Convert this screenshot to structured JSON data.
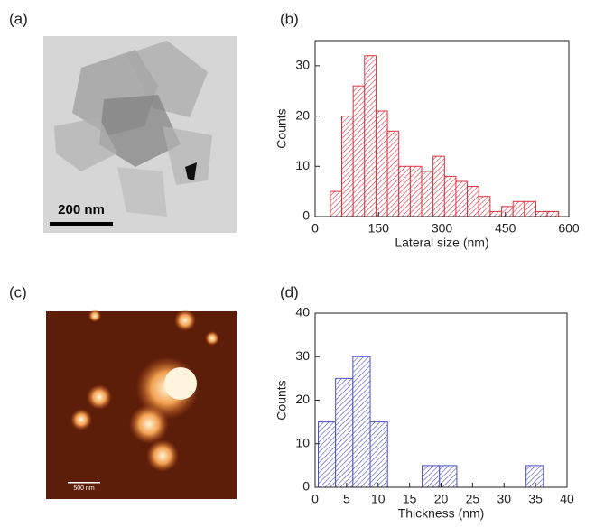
{
  "panels": {
    "a": "(a)",
    "b": "(b)",
    "c": "(c)",
    "d": "(d)"
  },
  "images": {
    "tem_scale_bar": "200 nm",
    "afm_scale_bar": "500 nm"
  },
  "chart_data": [
    {
      "type": "histogram",
      "xlabel": "Lateral size (nm)",
      "ylabel": "Counts",
      "color": "#d9333f",
      "bins": [
        36,
        63,
        90,
        117,
        144,
        171,
        198,
        225,
        252,
        279,
        306,
        333,
        360,
        387,
        414,
        441,
        468,
        495,
        522,
        549,
        576
      ],
      "values": [
        5,
        20,
        26,
        32,
        21,
        17,
        10,
        10,
        9,
        12,
        8,
        7,
        6,
        4,
        1,
        2,
        3,
        3,
        1,
        1
      ],
      "xlim": [
        0,
        600
      ],
      "xticks": [
        0,
        150,
        300,
        450,
        600
      ],
      "ylim": [
        0,
        35
      ],
      "yticks": [
        0,
        10,
        20,
        30
      ]
    },
    {
      "type": "histogram",
      "xlabel": "Thickness (nm)",
      "ylabel": "Counts",
      "color": "#4b50c4",
      "bins": [
        0.5,
        3.25,
        6,
        8.75,
        11.5,
        14.25,
        17,
        19.75,
        22.5,
        25.25,
        28,
        30.75,
        33.5,
        36.25
      ],
      "values": [
        15,
        25,
        30,
        15,
        0,
        0,
        5,
        5,
        0,
        0,
        0,
        0,
        5
      ],
      "xlim": [
        0,
        40
      ],
      "xticks": [
        0,
        5,
        10,
        15,
        20,
        25,
        30,
        35,
        40
      ],
      "ylim": [
        0,
        40
      ],
      "yticks": [
        0,
        10,
        20,
        30,
        40
      ]
    }
  ]
}
